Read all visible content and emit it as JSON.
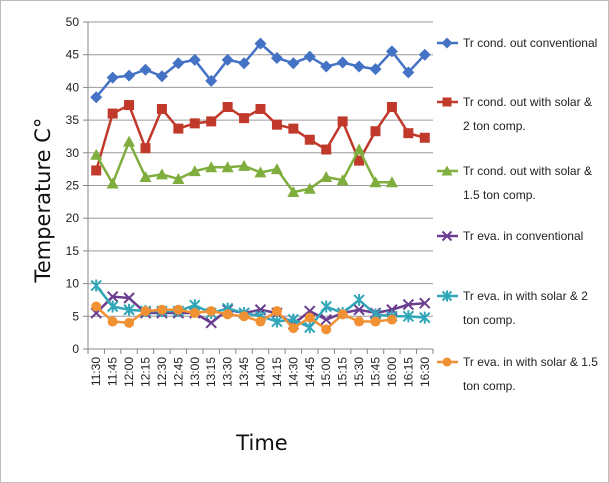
{
  "chart_data": {
    "type": "line",
    "xlabel": "Time",
    "ylabel": "Temperature C°",
    "ylim": [
      0,
      50
    ],
    "yticks": [
      0,
      5,
      10,
      15,
      20,
      25,
      30,
      35,
      40,
      45,
      50
    ],
    "grid": true,
    "legend_position": "right",
    "categories": [
      "11:30",
      "11:45",
      "12:00",
      "12:15",
      "12:30",
      "12:45",
      "13:00",
      "13:15",
      "13:30",
      "13:45",
      "14:00",
      "14:15",
      "14:30",
      "14:45",
      "15:00",
      "15:15",
      "15:30",
      "15:45",
      "16:00",
      "16:15",
      "16:30"
    ],
    "series": [
      {
        "name": "Tr cond. out conventional",
        "color": "#4472c4",
        "marker": "diamond",
        "values": [
          38.5,
          41.5,
          41.8,
          42.7,
          41.7,
          43.7,
          44.2,
          41.0,
          44.2,
          43.7,
          46.7,
          44.5,
          43.7,
          44.7,
          43.2,
          43.8,
          43.2,
          42.8,
          45.5,
          42.3,
          45.0
        ]
      },
      {
        "name": "Tr cond. out with solar & 2 ton comp.",
        "color": "#c0392b",
        "marker": "square",
        "values": [
          27.3,
          36.0,
          37.3,
          30.7,
          36.7,
          33.7,
          34.5,
          34.8,
          37.0,
          35.3,
          36.7,
          34.3,
          33.7,
          32.0,
          30.5,
          34.8,
          28.8,
          33.3,
          37.0,
          33.0,
          32.3
        ]
      },
      {
        "name": "Tr cond. out with solar & 1.5 ton comp.",
        "color": "#7fae3e",
        "marker": "triangle",
        "values": [
          29.7,
          25.3,
          31.7,
          26.3,
          26.7,
          26.0,
          27.2,
          27.8,
          27.8,
          28.0,
          27.0,
          27.5,
          24.0,
          24.5,
          26.3,
          25.8,
          30.5,
          25.5,
          25.5,
          null,
          null
        ]
      },
      {
        "name": "Tr eva. in conventional",
        "color": "#6b3d8f",
        "marker": "x",
        "values": [
          5.5,
          8.0,
          7.8,
          5.5,
          5.5,
          5.5,
          5.5,
          4.0,
          6.0,
          5.5,
          6.0,
          5.5,
          3.8,
          5.8,
          4.5,
          5.5,
          6.0,
          5.5,
          6.0,
          6.8,
          7.0
        ]
      },
      {
        "name": "Tr eva. in with solar & 2 ton comp.",
        "color": "#31a6b8",
        "marker": "star",
        "values": [
          9.7,
          6.5,
          6.0,
          5.8,
          5.8,
          5.8,
          6.7,
          5.5,
          6.2,
          5.5,
          5.0,
          4.2,
          4.5,
          3.3,
          6.5,
          5.5,
          7.5,
          5.3,
          5.0,
          5.0,
          4.8
        ]
      },
      {
        "name": "Tr eva. in with solar & 1.5 ton comp.",
        "color": "#f29133",
        "marker": "circle",
        "values": [
          6.5,
          4.2,
          4.0,
          5.8,
          6.0,
          6.0,
          5.5,
          5.8,
          5.3,
          5.0,
          4.2,
          5.8,
          3.2,
          4.8,
          3.0,
          5.3,
          4.2,
          4.2,
          4.5,
          null,
          null
        ]
      }
    ]
  }
}
